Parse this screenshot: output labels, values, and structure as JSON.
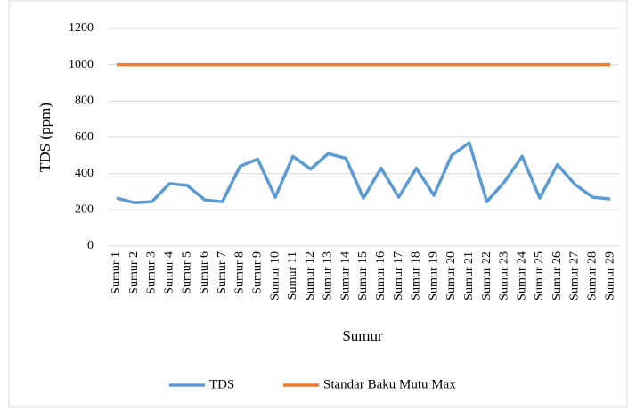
{
  "chart_data": {
    "type": "line",
    "x_label": "Sumur",
    "y_label": "TDS (ppm)",
    "categories": [
      "Sumur 1",
      "Sumur 2",
      "Sumur 3",
      "Sumur 4",
      "Sumur 5",
      "Sumur 6",
      "Sumur 7",
      "Sumur 8",
      "Sumur 9",
      "Sumur 10",
      "Sumur 11",
      "Sumur 12",
      "Sumur 13",
      "Sumur 14",
      "Sumur 15",
      "Sumur 16",
      "Sumur 17",
      "Sumur 18",
      "Sumur 19",
      "Sumur 20",
      "Sumur 21",
      "Sumur 22",
      "Sumur 23",
      "Sumur 24",
      "Sumur 25",
      "Sumur 26",
      "Sumur 27",
      "Sumur 28",
      "Sumur 29"
    ],
    "series": [
      {
        "name": "TDS",
        "color": "#5b9bd5",
        "values": [
          265,
          240,
          245,
          345,
          335,
          255,
          245,
          440,
          480,
          270,
          495,
          425,
          510,
          485,
          265,
          430,
          270,
          430,
          280,
          500,
          570,
          245,
          355,
          495,
          265,
          450,
          340,
          270,
          260
        ]
      },
      {
        "name": "Standar Baku Mutu Max",
        "color": "#ed7d31",
        "values": [
          1000,
          1000,
          1000,
          1000,
          1000,
          1000,
          1000,
          1000,
          1000,
          1000,
          1000,
          1000,
          1000,
          1000,
          1000,
          1000,
          1000,
          1000,
          1000,
          1000,
          1000,
          1000,
          1000,
          1000,
          1000,
          1000,
          1000,
          1000,
          1000
        ]
      }
    ],
    "ylim": [
      0,
      1200
    ],
    "yticks": [
      0,
      200,
      400,
      600,
      800,
      1000,
      1200
    ],
    "grid": true,
    "legend": "bottom"
  }
}
